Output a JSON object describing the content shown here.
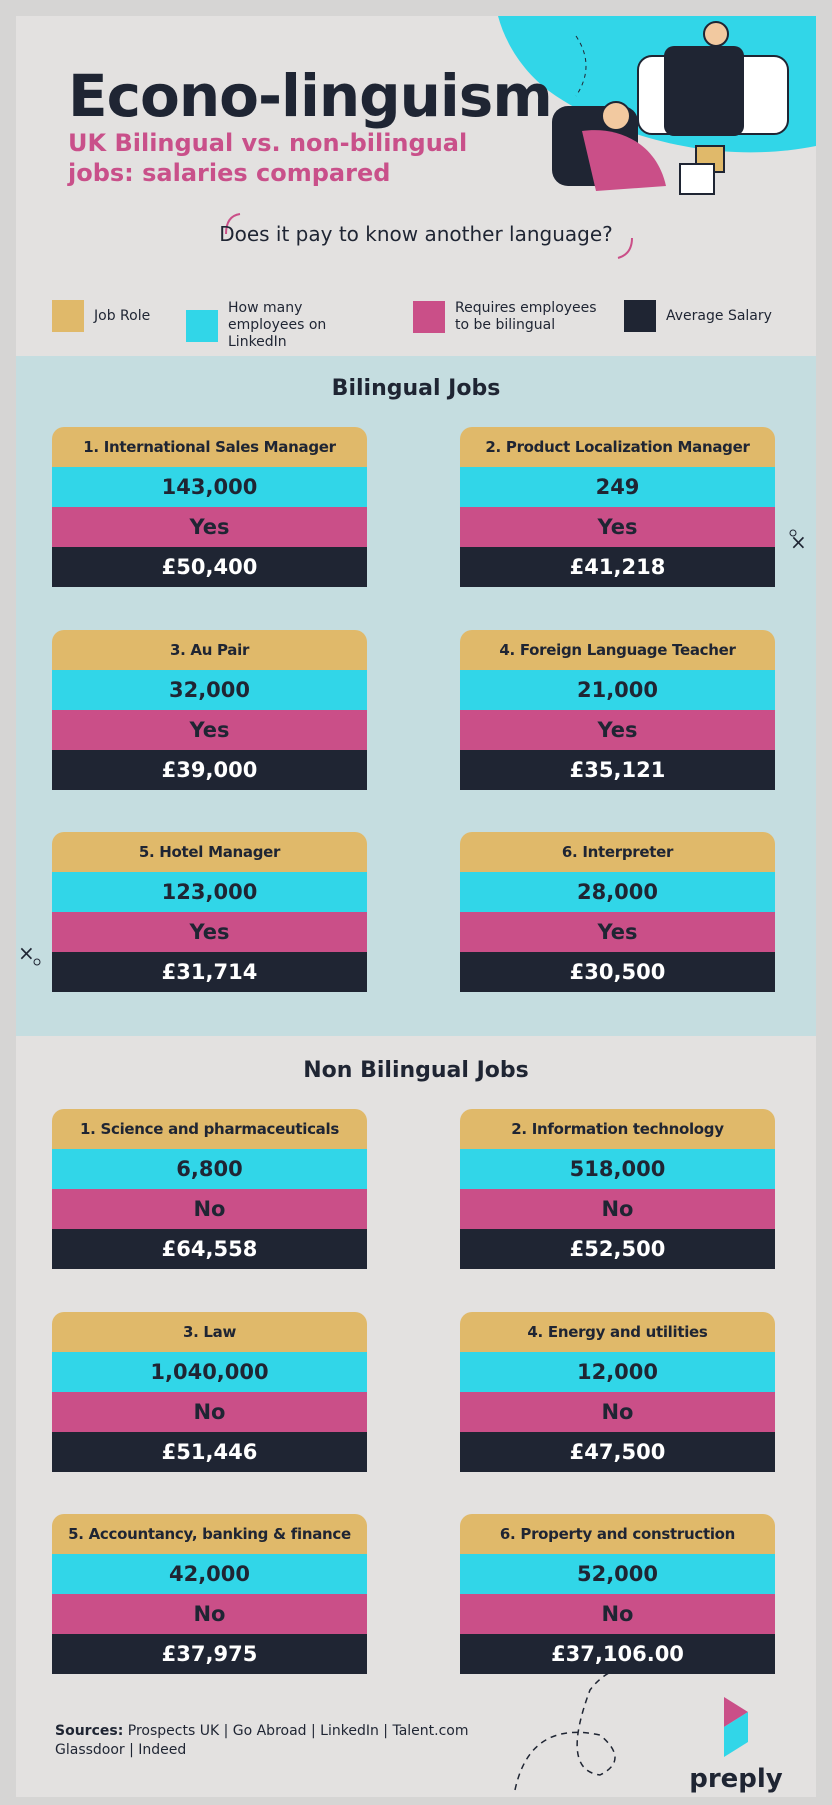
{
  "header": {
    "title": "Econo-linguism",
    "subtitle": "UK Bilingual vs. non-bilingual jobs: salaries compared",
    "question": "Does it pay to know another language?"
  },
  "legend": [
    {
      "label": "Job Role",
      "color": "#e0b96a"
    },
    {
      "label": "How many employees on LinkedIn",
      "color": "#31d6e8"
    },
    {
      "label": "Requires employees to be bilingual",
      "color": "#ca4f88"
    },
    {
      "label": "Average Salary",
      "color": "#1f2533"
    }
  ],
  "sections": [
    {
      "title": "Bilingual Jobs",
      "jobs": [
        {
          "role": "1. International Sales Manager",
          "employees": "143,000",
          "bilingual": "Yes",
          "salary": "£50,400"
        },
        {
          "role": "2. Product Localization Manager",
          "employees": "249",
          "bilingual": "Yes",
          "salary": "£41,218"
        },
        {
          "role": "3. Au Pair",
          "employees": "32,000",
          "bilingual": "Yes",
          "salary": "£39,000"
        },
        {
          "role": "4. Foreign Language Teacher",
          "employees": "21,000",
          "bilingual": "Yes",
          "salary": "£35,121"
        },
        {
          "role": "5. Hotel Manager",
          "employees": "123,000",
          "bilingual": "Yes",
          "salary": "£31,714"
        },
        {
          "role": "6. Interpreter",
          "employees": "28,000",
          "bilingual": "Yes",
          "salary": "£30,500"
        }
      ]
    },
    {
      "title": "Non Bilingual Jobs",
      "jobs": [
        {
          "role": "1. Science and pharmaceuticals",
          "employees": "6,800",
          "bilingual": "No",
          "salary": "£64,558"
        },
        {
          "role": "2. Information technology",
          "employees": "518,000",
          "bilingual": "No",
          "salary": "£52,500"
        },
        {
          "role": "3. Law",
          "employees": "1,040,000",
          "bilingual": "No",
          "salary": "£51,446"
        },
        {
          "role": "4. Energy and utilities",
          "employees": "12,000",
          "bilingual": "No",
          "salary": "£47,500"
        },
        {
          "role": "5. Accountancy, banking & finance",
          "employees": "42,000",
          "bilingual": "No",
          "salary": "£37,975"
        },
        {
          "role": "6. Property and construction",
          "employees": "52,000",
          "bilingual": "No",
          "salary": "£37,106.00"
        }
      ]
    }
  ],
  "sources": {
    "label": "Sources:",
    "lines": [
      "Prospects UK | Go Abroad | LinkedIn | Talent.com",
      "Glassdoor | Indeed"
    ]
  }
}
